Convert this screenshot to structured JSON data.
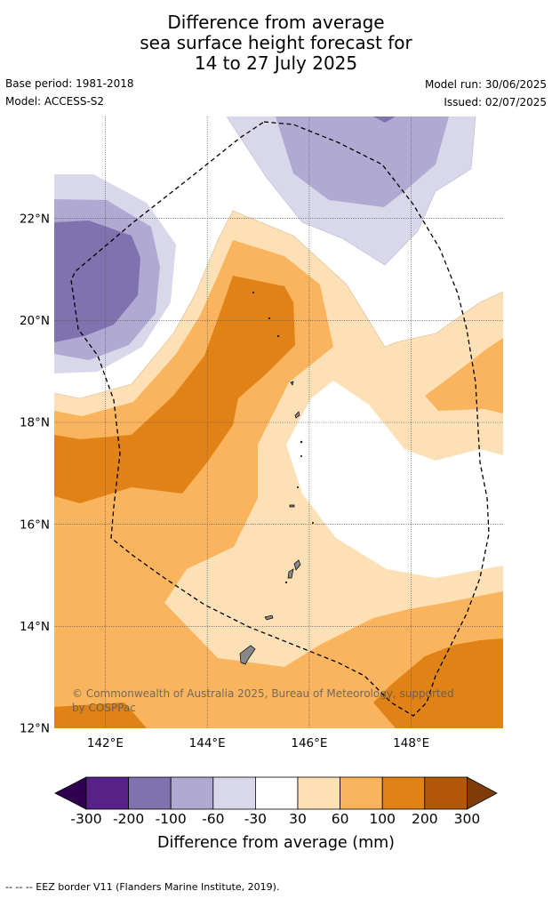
{
  "title": {
    "line1": "Difference from average",
    "line2": "sea surface height forecast for",
    "line3": "14 to 27 July 2025"
  },
  "meta": {
    "base_period": "Base period: 1981-2018",
    "model": "Model: ACCESS-S2",
    "model_run": "Model run: 30/06/2025",
    "issued": "Issued: 02/07/2025"
  },
  "map": {
    "lon_range": [
      141,
      149.8
    ],
    "lat_range": [
      12,
      24
    ],
    "lat_ticks": [
      "22°N",
      "20°N",
      "18°N",
      "16°N",
      "14°N",
      "12°N"
    ],
    "lon_ticks": [
      "142°E",
      "144°E",
      "146°E",
      "148°E"
    ],
    "copyright": "© Commonwealth of Australia 2025, Bureau of Meteorology, supported",
    "copyright2": "by COSPPac"
  },
  "colorbar": {
    "title": "Difference from average (mm)",
    "unit": "mm",
    "levels": [
      "-300",
      "-200",
      "-100",
      "-60",
      "-30",
      "30",
      "60",
      "100",
      "200",
      "300"
    ],
    "colors": {
      "below_-300": "#300050",
      "-300_-200": "#572288",
      "-200_-100": "#8072ae",
      "-100_-60": "#b0a9d2",
      "-60_-30": "#d9d8eb",
      "-30_30": "#ffffff",
      "30_60": "#fde0b6",
      "60_100": "#fab45e",
      "100_200": "#e08216",
      "200_300": "#b35808",
      "above_300": "#7f3b08"
    }
  },
  "footer": "--  --  -- EEZ border V11 (Flanders Marine Institute, 2019)."
}
